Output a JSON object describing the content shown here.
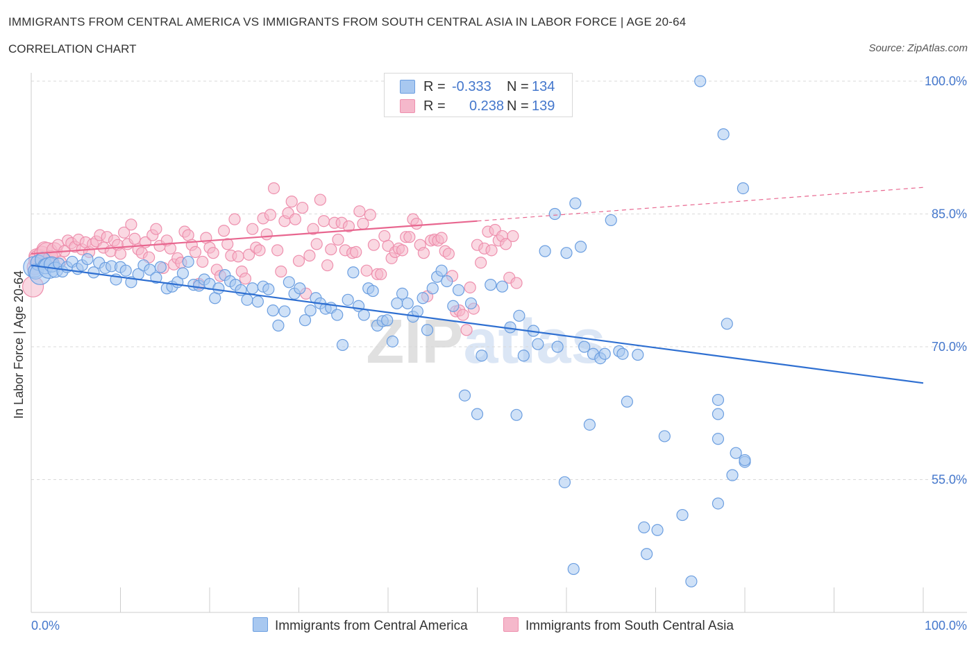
{
  "header": {
    "title": "IMMIGRANTS FROM CENTRAL AMERICA VS IMMIGRANTS FROM SOUTH CENTRAL ASIA IN LABOR FORCE | AGE 20-64",
    "subtitle": "CORRELATION CHART",
    "source": "Source: ZipAtlas.com"
  },
  "colors": {
    "blue_fill": "#a8c8f0",
    "blue_stroke": "#6b9ee0",
    "blue_line": "#2e6fd1",
    "pink_fill": "#f5b8cb",
    "pink_stroke": "#ee8fad",
    "pink_line": "#e8668f",
    "tick_text": "#4477cc",
    "grid": "#d9d9d9"
  },
  "stats": {
    "blue": {
      "r_label": "R =",
      "r_value": "-0.333",
      "n_label": "N =",
      "n_value": "134"
    },
    "pink": {
      "r_label": "R =",
      "r_value": "0.238",
      "n_label": "N =",
      "n_value": "139"
    }
  },
  "legend": {
    "blue_label": "Immigrants from Central America",
    "pink_label": "Immigrants from South Central Asia"
  },
  "chart_data": {
    "type": "scatter",
    "title": "IMMIGRANTS FROM CENTRAL AMERICA VS IMMIGRANTS FROM SOUTH CENTRAL ASIA IN LABOR FORCE | AGE 20-64",
    "xlabel": "",
    "ylabel": "In Labor Force | Age 20-64",
    "xlim": [
      0,
      100
    ],
    "ylim": [
      40,
      100
    ],
    "x_tick_labels": [
      "0.0%",
      "100.0%"
    ],
    "y_ticks": [
      55,
      70,
      85,
      100
    ],
    "y_tick_labels": [
      "55.0%",
      "70.0%",
      "85.0%",
      "100.0%"
    ],
    "watermark": "ZIPatlas",
    "series": [
      {
        "name": "Immigrants from Central America",
        "color": "blue",
        "trend": {
          "x0": 0,
          "y0": 79.2,
          "x1": 100,
          "y1": 65.9
        },
        "points": [
          [
            0.3,
            79.0
          ],
          [
            0.5,
            78.5
          ],
          [
            0.8,
            79.5
          ],
          [
            1.0,
            78.2
          ],
          [
            1.3,
            79.8
          ],
          [
            1.6,
            79.1
          ],
          [
            2.0,
            78.9
          ],
          [
            2.3,
            79.3
          ],
          [
            2.7,
            78.7
          ],
          [
            3.1,
            79.4
          ],
          [
            3.5,
            78.5
          ],
          [
            4.0,
            79.0
          ],
          [
            4.6,
            79.6
          ],
          [
            5.2,
            78.8
          ],
          [
            5.7,
            79.2
          ],
          [
            6.3,
            79.9
          ],
          [
            7.0,
            78.4
          ],
          [
            7.6,
            79.5
          ],
          [
            8.3,
            78.9
          ],
          [
            9.0,
            79.1
          ],
          [
            9.5,
            77.6
          ],
          [
            10.0,
            79.0
          ],
          [
            10.6,
            78.6
          ],
          [
            11.2,
            77.3
          ],
          [
            12.0,
            78.2
          ],
          [
            12.6,
            79.2
          ],
          [
            13.3,
            78.7
          ],
          [
            14.0,
            77.8
          ],
          [
            14.5,
            79.0
          ],
          [
            15.2,
            76.6
          ],
          [
            15.8,
            76.8
          ],
          [
            16.4,
            77.3
          ],
          [
            17.0,
            78.3
          ],
          [
            17.6,
            79.6
          ],
          [
            18.2,
            77.0
          ],
          [
            18.8,
            76.9
          ],
          [
            19.4,
            77.6
          ],
          [
            20.0,
            77.1
          ],
          [
            20.6,
            75.5
          ],
          [
            21.0,
            76.6
          ],
          [
            21.7,
            78.1
          ],
          [
            22.3,
            77.4
          ],
          [
            22.9,
            77.0
          ],
          [
            23.5,
            76.4
          ],
          [
            24.2,
            75.3
          ],
          [
            24.8,
            76.6
          ],
          [
            25.4,
            75.1
          ],
          [
            26.0,
            76.8
          ],
          [
            26.6,
            76.5
          ],
          [
            27.1,
            74.1
          ],
          [
            27.7,
            72.4
          ],
          [
            28.4,
            74.0
          ],
          [
            28.9,
            77.3
          ],
          [
            29.5,
            76.0
          ],
          [
            30.1,
            76.6
          ],
          [
            30.7,
            73.0
          ],
          [
            31.3,
            74.1
          ],
          [
            31.9,
            75.5
          ],
          [
            32.4,
            74.9
          ],
          [
            33.0,
            74.3
          ],
          [
            33.6,
            74.4
          ],
          [
            34.3,
            73.6
          ],
          [
            34.9,
            70.2
          ],
          [
            35.5,
            75.3
          ],
          [
            36.1,
            78.4
          ],
          [
            36.7,
            74.6
          ],
          [
            37.3,
            73.6
          ],
          [
            37.8,
            76.6
          ],
          [
            38.3,
            76.3
          ],
          [
            38.8,
            72.4
          ],
          [
            39.4,
            72.9
          ],
          [
            39.9,
            73.0
          ],
          [
            40.5,
            70.6
          ],
          [
            41.0,
            74.9
          ],
          [
            41.6,
            76.0
          ],
          [
            42.2,
            74.9
          ],
          [
            42.8,
            73.4
          ],
          [
            43.3,
            74.0
          ],
          [
            43.9,
            75.5
          ],
          [
            44.4,
            71.9
          ],
          [
            45.0,
            76.6
          ],
          [
            45.5,
            77.9
          ],
          [
            46.0,
            78.6
          ],
          [
            46.6,
            77.4
          ],
          [
            47.3,
            74.6
          ],
          [
            47.9,
            76.4
          ],
          [
            48.6,
            64.5
          ],
          [
            49.3,
            74.9
          ],
          [
            50.0,
            62.4
          ],
          [
            50.5,
            69.0
          ],
          [
            51.5,
            77.0
          ],
          [
            52.8,
            76.8
          ],
          [
            53.7,
            72.2
          ],
          [
            54.4,
            62.3
          ],
          [
            54.7,
            73.5
          ],
          [
            55.2,
            69.0
          ],
          [
            56.3,
            71.8
          ],
          [
            56.8,
            70.3
          ],
          [
            57.6,
            80.8
          ],
          [
            58.7,
            85.0
          ],
          [
            59.0,
            70.0
          ],
          [
            59.8,
            54.7
          ],
          [
            60.0,
            80.6
          ],
          [
            60.8,
            44.9
          ],
          [
            61.0,
            86.2
          ],
          [
            61.6,
            81.3
          ],
          [
            62.0,
            70.0
          ],
          [
            62.6,
            61.2
          ],
          [
            63.0,
            69.2
          ],
          [
            63.8,
            68.7
          ],
          [
            64.3,
            69.2
          ],
          [
            65.0,
            84.3
          ],
          [
            65.9,
            69.5
          ],
          [
            66.3,
            69.2
          ],
          [
            66.8,
            63.8
          ],
          [
            68.0,
            69.1
          ],
          [
            68.7,
            49.6
          ],
          [
            69.0,
            46.6
          ],
          [
            70.2,
            49.3
          ],
          [
            71.0,
            59.9
          ],
          [
            73.0,
            51.0
          ],
          [
            74.0,
            43.5
          ],
          [
            75.0,
            100.0
          ],
          [
            77.0,
            59.6
          ],
          [
            77.0,
            62.4
          ],
          [
            77.0,
            64.0
          ],
          [
            77.0,
            52.3
          ],
          [
            77.6,
            94.0
          ],
          [
            78.0,
            72.6
          ],
          [
            78.6,
            55.5
          ],
          [
            79.0,
            58.0
          ],
          [
            79.8,
            87.9
          ],
          [
            80.0,
            57.0
          ],
          [
            80.0,
            57.2
          ]
        ]
      },
      {
        "name": "Immigrants from South Central Asia",
        "color": "pink",
        "trend": {
          "x0": 0,
          "y0": 80.5,
          "x1": 50,
          "y1": 84.2,
          "dashed_to_x": 100,
          "dashed_to_y": 88.0
        },
        "points": [
          [
            0.2,
            76.8
          ],
          [
            0.4,
            79.0
          ],
          [
            0.6,
            80.2
          ],
          [
            0.9,
            79.8
          ],
          [
            1.2,
            80.5
          ],
          [
            1.5,
            81.0
          ],
          [
            1.8,
            80.6
          ],
          [
            2.2,
            80.0
          ],
          [
            2.6,
            80.9
          ],
          [
            3.0,
            81.5
          ],
          [
            3.3,
            79.6
          ],
          [
            3.7,
            80.8
          ],
          [
            4.1,
            82.0
          ],
          [
            4.5,
            81.7
          ],
          [
            4.9,
            81.3
          ],
          [
            5.3,
            82.1
          ],
          [
            5.7,
            81.0
          ],
          [
            6.1,
            81.8
          ],
          [
            6.5,
            80.7
          ],
          [
            6.9,
            81.6
          ],
          [
            7.3,
            81.9
          ],
          [
            7.7,
            82.6
          ],
          [
            8.1,
            81.2
          ],
          [
            8.5,
            82.4
          ],
          [
            8.9,
            80.8
          ],
          [
            9.3,
            82.0
          ],
          [
            9.7,
            81.5
          ],
          [
            10.0,
            80.5
          ],
          [
            10.4,
            82.9
          ],
          [
            10.8,
            81.6
          ],
          [
            11.2,
            83.8
          ],
          [
            11.6,
            82.2
          ],
          [
            12.0,
            81.0
          ],
          [
            12.4,
            80.6
          ],
          [
            12.8,
            81.8
          ],
          [
            13.2,
            80.1
          ],
          [
            13.6,
            82.6
          ],
          [
            14.0,
            83.3
          ],
          [
            14.4,
            81.4
          ],
          [
            14.8,
            78.9
          ],
          [
            15.2,
            82.0
          ],
          [
            15.6,
            81.1
          ],
          [
            16.0,
            79.3
          ],
          [
            16.4,
            80.0
          ],
          [
            16.8,
            79.5
          ],
          [
            17.2,
            83.0
          ],
          [
            17.6,
            82.6
          ],
          [
            18.0,
            81.5
          ],
          [
            18.4,
            80.7
          ],
          [
            18.8,
            77.1
          ],
          [
            19.2,
            79.6
          ],
          [
            19.6,
            82.3
          ],
          [
            20.0,
            81.2
          ],
          [
            20.4,
            80.6
          ],
          [
            20.8,
            78.7
          ],
          [
            21.2,
            78.0
          ],
          [
            21.6,
            83.1
          ],
          [
            22.0,
            81.6
          ],
          [
            22.4,
            80.3
          ],
          [
            22.8,
            84.4
          ],
          [
            23.2,
            80.2
          ],
          [
            23.6,
            78.5
          ],
          [
            24.0,
            77.7
          ],
          [
            24.4,
            80.4
          ],
          [
            24.8,
            83.3
          ],
          [
            25.2,
            81.2
          ],
          [
            25.6,
            80.9
          ],
          [
            26.0,
            84.5
          ],
          [
            26.4,
            82.7
          ],
          [
            26.8,
            84.9
          ],
          [
            27.2,
            87.9
          ],
          [
            27.6,
            80.9
          ],
          [
            28.0,
            78.5
          ],
          [
            28.4,
            84.2
          ],
          [
            28.8,
            85.1
          ],
          [
            29.2,
            86.4
          ],
          [
            29.6,
            84.4
          ],
          [
            30.0,
            79.7
          ],
          [
            30.4,
            85.7
          ],
          [
            30.8,
            76.0
          ],
          [
            31.2,
            80.3
          ],
          [
            31.6,
            83.3
          ],
          [
            32.0,
            81.6
          ],
          [
            32.4,
            86.6
          ],
          [
            32.8,
            84.2
          ],
          [
            33.2,
            79.2
          ],
          [
            33.6,
            81.0
          ],
          [
            34.0,
            84.0
          ],
          [
            34.4,
            82.1
          ],
          [
            34.8,
            84.0
          ],
          [
            35.2,
            80.9
          ],
          [
            35.6,
            83.6
          ],
          [
            36.0,
            80.6
          ],
          [
            36.4,
            80.7
          ],
          [
            36.8,
            85.3
          ],
          [
            37.2,
            83.9
          ],
          [
            37.6,
            78.6
          ],
          [
            38.0,
            84.9
          ],
          [
            38.4,
            81.5
          ],
          [
            38.8,
            78.2
          ],
          [
            39.2,
            78.2
          ],
          [
            39.6,
            82.5
          ],
          [
            40.0,
            81.4
          ],
          [
            40.4,
            80.0
          ],
          [
            40.8,
            80.7
          ],
          [
            41.2,
            81.1
          ],
          [
            41.6,
            80.9
          ],
          [
            42.0,
            82.4
          ],
          [
            42.4,
            82.4
          ],
          [
            42.8,
            84.4
          ],
          [
            43.2,
            83.9
          ],
          [
            43.6,
            81.5
          ],
          [
            44.0,
            80.6
          ],
          [
            44.4,
            75.7
          ],
          [
            44.8,
            82.0
          ],
          [
            45.2,
            82.1
          ],
          [
            45.6,
            82.0
          ],
          [
            46.0,
            82.3
          ],
          [
            46.4,
            80.8
          ],
          [
            46.8,
            80.5
          ],
          [
            47.2,
            78.0
          ],
          [
            47.6,
            74.0
          ],
          [
            48.0,
            74.1
          ],
          [
            48.4,
            73.6
          ],
          [
            48.8,
            71.9
          ],
          [
            49.2,
            76.7
          ],
          [
            49.6,
            74.3
          ],
          [
            50.0,
            81.5
          ],
          [
            50.4,
            79.5
          ],
          [
            50.8,
            81.1
          ],
          [
            51.2,
            83.0
          ],
          [
            51.6,
            80.9
          ],
          [
            52.0,
            83.2
          ],
          [
            52.4,
            82.0
          ],
          [
            52.8,
            82.5
          ],
          [
            53.2,
            81.6
          ],
          [
            53.6,
            77.8
          ],
          [
            54.0,
            82.5
          ],
          [
            54.4,
            77.2
          ]
        ]
      }
    ]
  }
}
